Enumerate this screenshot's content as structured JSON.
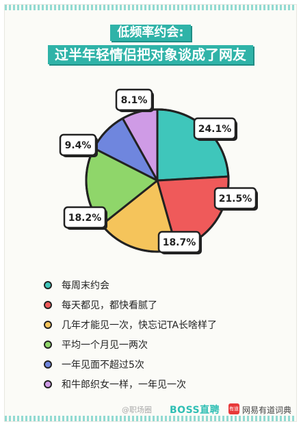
{
  "title": {
    "line1": "低频率约会:",
    "line2": "过半年轻情侣把对象谈成了网友"
  },
  "chart_data": {
    "type": "pie",
    "start_angle_deg": 0,
    "categories": [
      "每周末约会",
      "每天都见，都快看腻了",
      "几年才能见一次，快忘记TA长啥样了",
      "平均一个月见一两次",
      "一年见面不超过5次",
      "和牛郎织女一样，一年见一次"
    ],
    "values": [
      24.1,
      21.5,
      18.7,
      18.2,
      9.4,
      8.1
    ],
    "value_labels": [
      "24.1%",
      "21.5%",
      "18.7%",
      "18.2%",
      "9.4%",
      "8.1%"
    ],
    "colors": [
      "#3fc6bb",
      "#ef5a5a",
      "#f5c45b",
      "#8fd66a",
      "#6f86de",
      "#cf9be6"
    ],
    "legend_position": "bottom"
  },
  "footer": {
    "weibo": "@职场圈",
    "boss": "BOSS直聘",
    "youdao_logo": "有道",
    "youdao": "网易有道词典"
  }
}
